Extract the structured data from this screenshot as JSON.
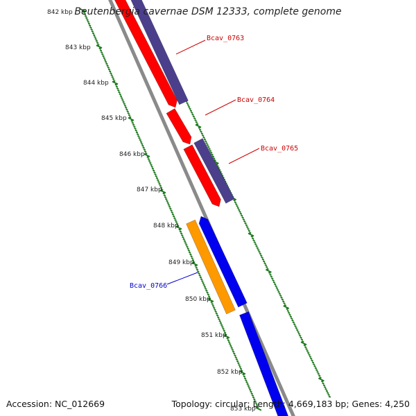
{
  "title": "Beutenbergia cavernae DSM 12333, complete genome",
  "accession": "Accession: NC_012669",
  "summary": "Topology: circular; Length: 4,669,183 bp; Genes: 4,250",
  "colors": {
    "background": "#ffffff",
    "backbone": "#8a8a8a",
    "tick": "#1f7a1f",
    "gene_red": "#ff0000",
    "gene_purple": "#4b3f8c",
    "gene_blue": "#0000ee",
    "gene_orange": "#ff9900",
    "label_red": "#cc0000",
    "label_blue": "#0000cc"
  },
  "scale_labels": [
    "842 kbp",
    "843 kbp",
    "844 kbp",
    "845 kbp",
    "846 kbp",
    "847 kbp",
    "848 kbp",
    "849 kbp",
    "850 kbp",
    "851 kbp",
    "852 kbp",
    "853 kbp"
  ],
  "gene_labels": [
    {
      "name": "Bcav_0763",
      "color": "#cc0000"
    },
    {
      "name": "Bcav_0764",
      "color": "#cc0000"
    },
    {
      "name": "Bcav_0765",
      "color": "#cc0000"
    },
    {
      "name": "Bcav_0766",
      "color": "#0000cc"
    }
  ]
}
